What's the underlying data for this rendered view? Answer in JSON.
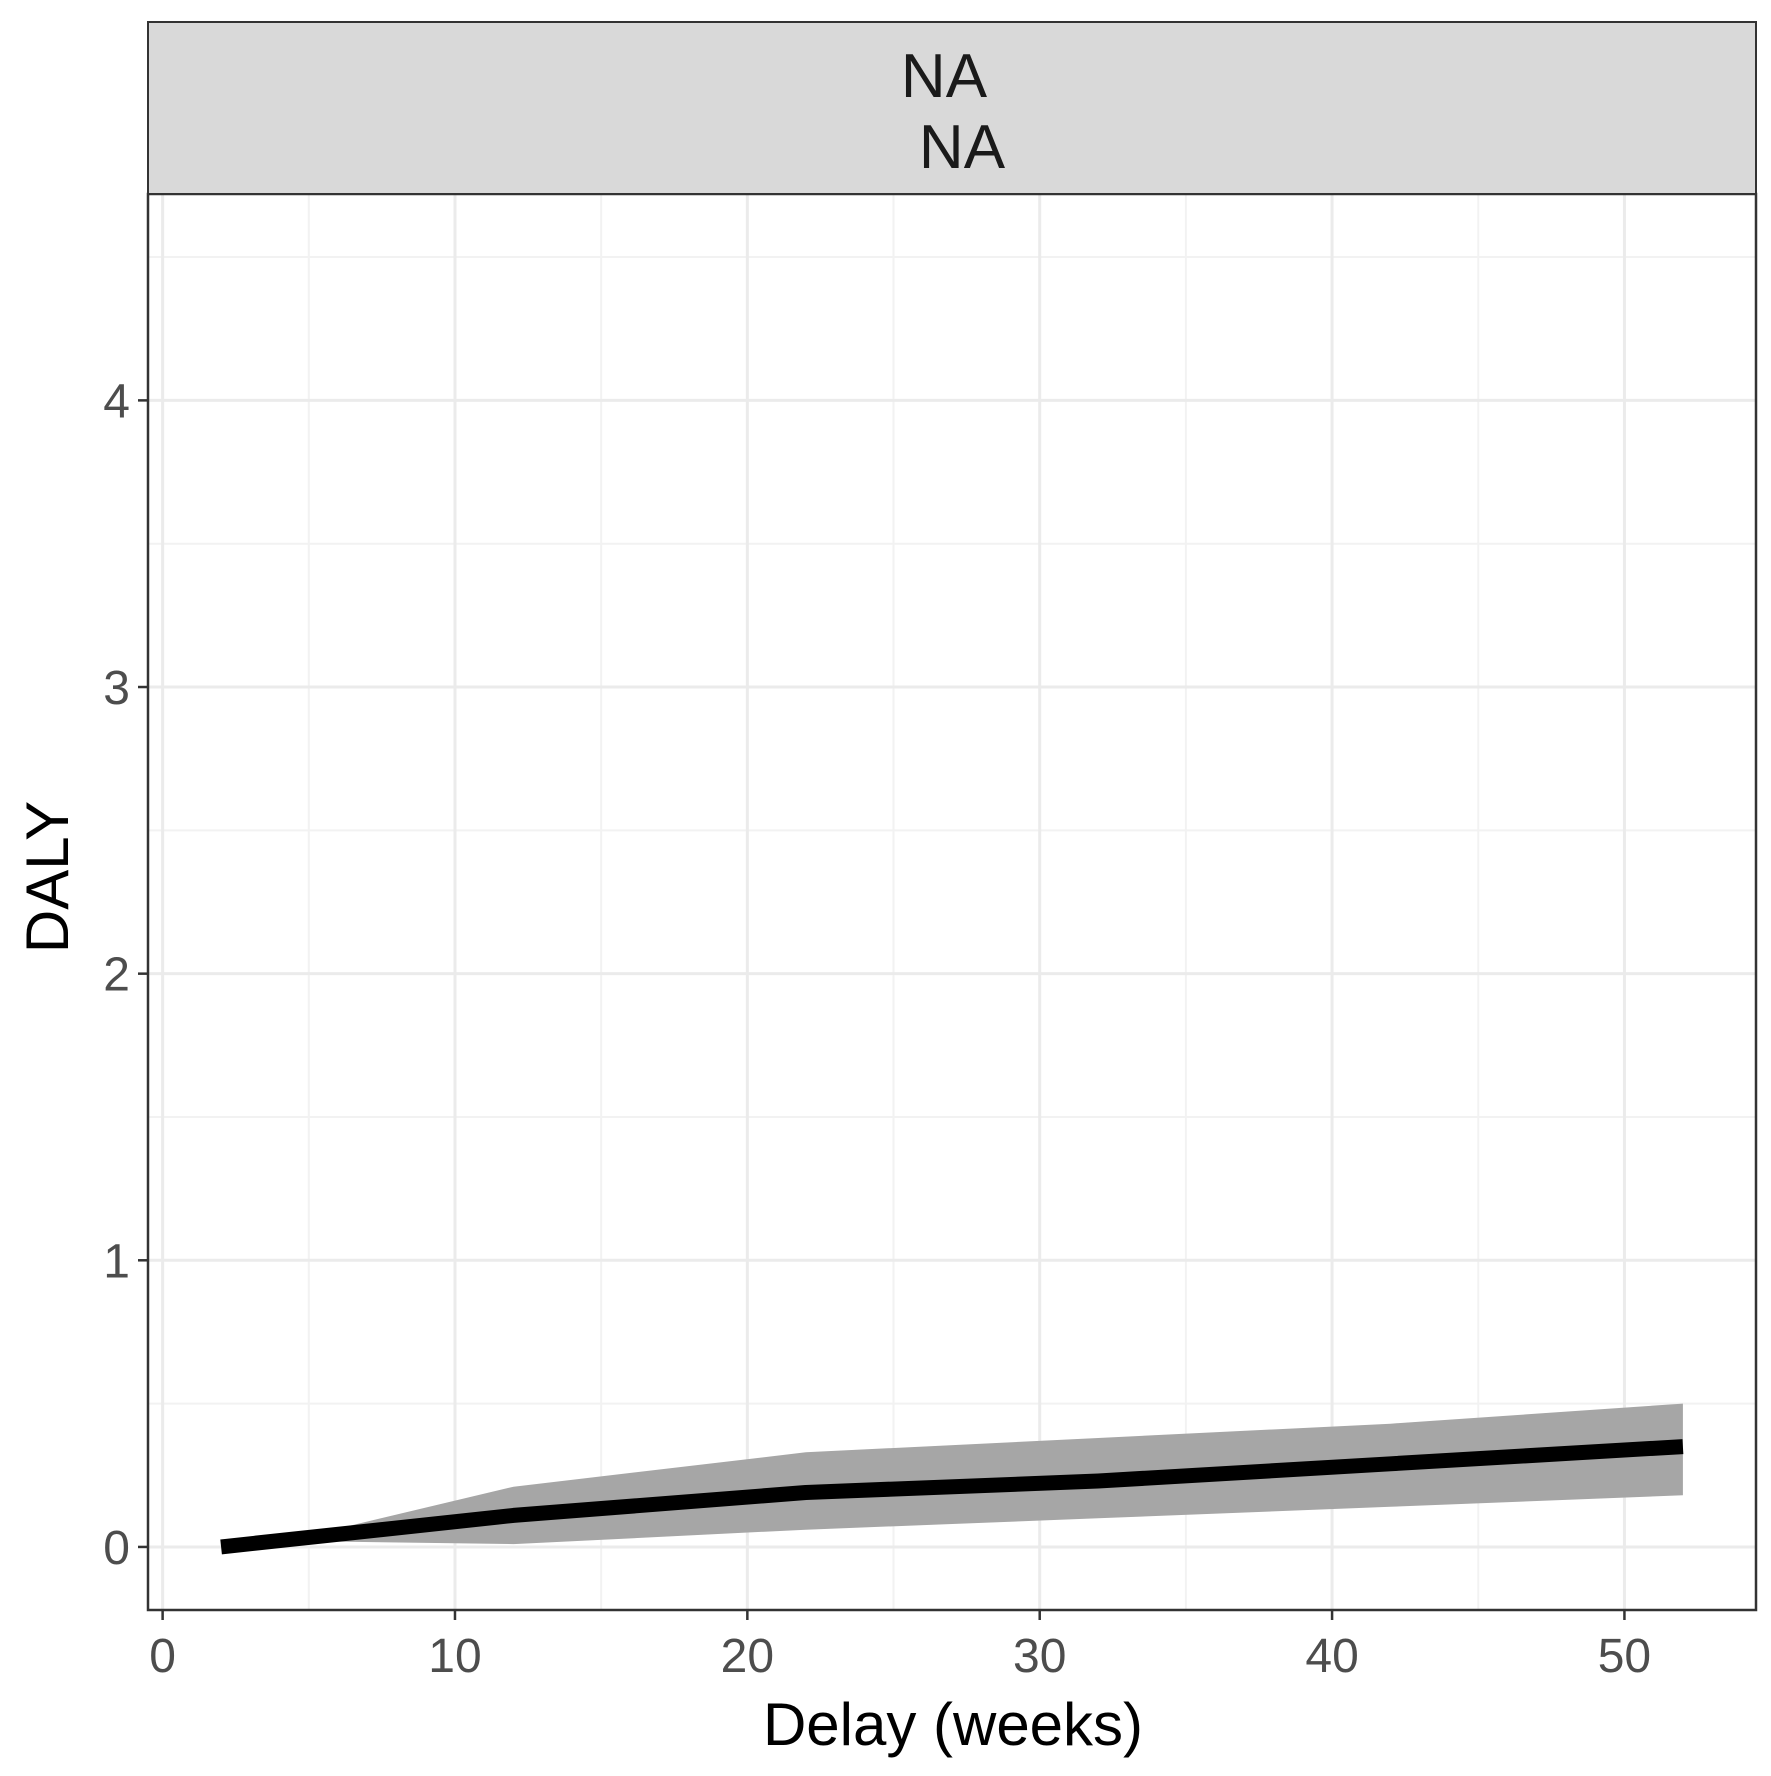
{
  "facet": {
    "line1": "NA",
    "line2": "NA"
  },
  "colors": {
    "panel_border": "#333333",
    "strip_fill": "#d9d9d9",
    "grid_major": "#ebebeb",
    "grid_minor": "#f2f2f2",
    "ribbon": "#a6a6a6",
    "line": "#000000",
    "tick_text": "#4d4d4d",
    "axis_title": "#000000"
  },
  "chart_data": {
    "type": "line",
    "title": "",
    "xlabel": "Delay (weeks)",
    "ylabel": "DALY",
    "xlim": [
      -0.5,
      54.5
    ],
    "ylim": [
      -0.22,
      4.72
    ],
    "x_ticks": [
      0,
      10,
      20,
      30,
      40,
      50
    ],
    "x_tick_labels": [
      "0",
      "10",
      "20",
      "30",
      "40",
      "50"
    ],
    "y_ticks": [
      0,
      1,
      2,
      3,
      4
    ],
    "y_tick_labels": [
      "0",
      "1",
      "2",
      "3",
      "4"
    ],
    "x_minor": [
      5,
      15,
      25,
      35,
      45
    ],
    "y_minor": [
      0.5,
      1.5,
      2.5,
      3.5,
      4.5
    ],
    "grid": true,
    "legend": "none",
    "series": [
      {
        "x": [
          2,
          12,
          22,
          32,
          42,
          52
        ],
        "values": [
          0.0,
          0.11,
          0.19,
          0.23,
          0.29,
          0.35
        ]
      }
    ],
    "ribbon": {
      "x": [
        2,
        5,
        12,
        22,
        32,
        42,
        52
      ],
      "upper": [
        0.0,
        0.04,
        0.21,
        0.33,
        0.38,
        0.43,
        0.5
      ],
      "lower": [
        0.0,
        0.02,
        0.01,
        0.06,
        0.1,
        0.14,
        0.18
      ]
    }
  }
}
